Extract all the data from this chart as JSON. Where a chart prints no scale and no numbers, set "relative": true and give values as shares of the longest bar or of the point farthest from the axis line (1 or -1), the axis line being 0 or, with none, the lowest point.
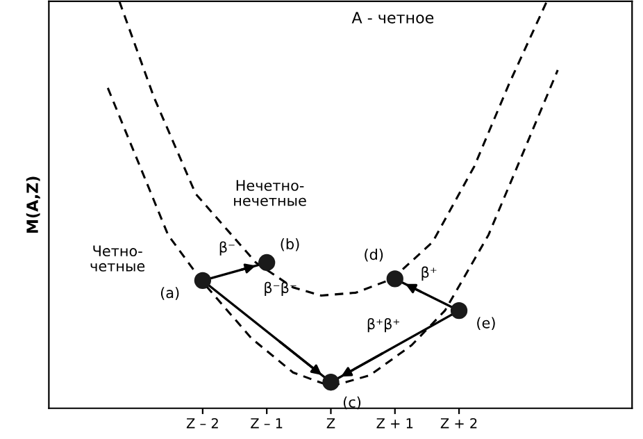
{
  "chart_data": {
    "type": "line",
    "title": "А - четное",
    "ylabel": "M(A,Z)",
    "relative": true,
    "xlim": [
      -4.4,
      4.7
    ],
    "xticks": [
      {
        "value": -2,
        "label": "Z – 2"
      },
      {
        "value": -1,
        "label": "Z – 1"
      },
      {
        "value": 0,
        "label": "Z"
      },
      {
        "value": 1,
        "label": "Z + 1"
      },
      {
        "value": 2,
        "label": "Z + 2"
      }
    ],
    "series": [
      {
        "line_style": "dashed",
        "color": "#000000",
        "x": [
          -3.3,
          -2.76,
          -2.11,
          -1.17,
          -0.59,
          -0.15,
          0.39,
          0.96,
          1.59,
          2.24,
          2.78,
          3.37
        ],
        "values": [
          1.0,
          0.764,
          0.527,
          0.358,
          0.297,
          0.277,
          0.284,
          0.318,
          0.409,
          0.595,
          0.797,
          1.0
        ]
      },
      {
        "line_style": "dashed",
        "color": "#000000",
        "x": [
          -3.48,
          -2.98,
          -2.54,
          -2.02,
          -1.24,
          -0.59,
          0,
          0.61,
          1.26,
          1.78,
          2.46,
          3.0,
          3.54
        ],
        "values": [
          0.787,
          0.595,
          0.426,
          0.314,
          0.172,
          0.088,
          0.054,
          0.081,
          0.155,
          0.24,
          0.426,
          0.628,
          0.831
        ]
      },
      {
        "type": "scatter",
        "marker": "circle",
        "color": "#1a1a1a",
        "x": [
          -2,
          -1,
          0,
          1,
          2
        ],
        "values": [
          0.314,
          0.358,
          0.064,
          0.318,
          0.24
        ]
      },
      {
        "type": "line",
        "line_style": "solid",
        "color": "#000000",
        "x": [
          -2,
          -1
        ],
        "values": [
          0.314,
          0.358
        ]
      },
      {
        "type": "line",
        "line_style": "solid",
        "color": "#000000",
        "x": [
          -2,
          0
        ],
        "values": [
          0.314,
          0.064
        ]
      },
      {
        "type": "line",
        "line_style": "solid",
        "color": "#000000",
        "x": [
          2,
          1
        ],
        "values": [
          0.24,
          0.318
        ]
      },
      {
        "type": "line",
        "line_style": "solid",
        "color": "#000000",
        "x": [
          2,
          0
        ],
        "values": [
          0.24,
          0.064
        ]
      }
    ],
    "annotations": [
      "(a)",
      "(b)",
      "(c)",
      "(d)",
      "(e)",
      "β⁻",
      "β⁻β⁻",
      "β⁺",
      "β⁺β⁺",
      "Нечетно-\nнечетные",
      "Четно-\nчетные"
    ]
  }
}
